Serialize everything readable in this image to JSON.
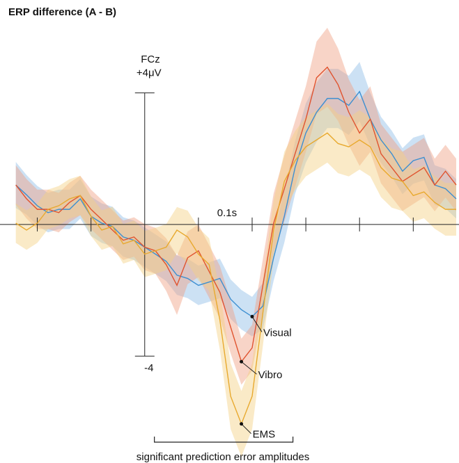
{
  "chart_data": {
    "type": "line",
    "title": "ERP difference (A - B)",
    "y_label": "FCz",
    "x": [
      -0.12,
      -0.11,
      -0.1,
      -0.09,
      -0.08,
      -0.07,
      -0.06,
      -0.05,
      -0.04,
      -0.03,
      -0.02,
      -0.01,
      0,
      0.01,
      0.02,
      0.03,
      0.04,
      0.05,
      0.06,
      0.07,
      0.08,
      0.09,
      0.1,
      0.11,
      0.12,
      0.13,
      0.14,
      0.15,
      0.16,
      0.17,
      0.18,
      0.19,
      0.2,
      0.21,
      0.22,
      0.23,
      0.24,
      0.25,
      0.26,
      0.27,
      0.28,
      0.29
    ],
    "xlim": [
      -0.125,
      0.29
    ],
    "ylim": [
      -6.7,
      6.4
    ],
    "xticks": [
      {
        "value": -0.1,
        "label": null
      },
      {
        "value": -0.05,
        "label": null
      },
      {
        "value": 0.05,
        "label": null
      },
      {
        "value": 0.1,
        "label": "0.1s"
      },
      {
        "value": 0.15,
        "label": null
      },
      {
        "value": 0.2,
        "label": null
      },
      {
        "value": 0.25,
        "label": null
      }
    ],
    "yticks": [
      {
        "value": 4,
        "label": "+4μV"
      },
      -4
    ],
    "series": [
      {
        "name": "Visual",
        "color": "#3d8fd1",
        "band_color": "#8dbde6",
        "values": [
          1.2,
          0.9,
          0.57,
          0.36,
          0.46,
          0.46,
          0.78,
          0.25,
          0.04,
          -0.06,
          -0.38,
          -0.48,
          -0.69,
          -0.9,
          -1.12,
          -1.54,
          -1.64,
          -1.85,
          -1.75,
          -1.64,
          -2.27,
          -2.59,
          -2.8,
          -2.48,
          -1.01,
          0.25,
          1.73,
          2.78,
          3.41,
          3.83,
          3.83,
          3.62,
          4.04,
          3.2,
          2.57,
          2.15,
          1.62,
          1.94,
          2.04,
          1.2,
          1.09,
          0.78
        ],
        "error": [
          0.7,
          0.6,
          0.6,
          0.6,
          0.6,
          0.6,
          0.6,
          0.6,
          0.6,
          0.6,
          0.6,
          0.6,
          0.6,
          0.6,
          0.6,
          0.6,
          0.6,
          0.6,
          0.6,
          0.6,
          0.6,
          0.6,
          0.6,
          0.7,
          0.7,
          0.8,
          0.8,
          0.9,
          0.9,
          0.9,
          0.9,
          0.9,
          0.9,
          0.8,
          0.7,
          0.7,
          0.7,
          0.7,
          0.7,
          0.6,
          0.6,
          0.6
        ]
      },
      {
        "name": "Vibro",
        "color": "#e0532f",
        "band_color": "#f0a083",
        "values": [
          1.2,
          0.78,
          0.46,
          0.46,
          0.36,
          0.67,
          0.88,
          0.46,
          0.15,
          -0.17,
          -0.48,
          -0.38,
          -0.69,
          -0.8,
          -1.22,
          -1.85,
          -1.01,
          -0.8,
          -1.43,
          -2.06,
          -3.12,
          -4.17,
          -3.75,
          -1.85,
          0.04,
          1.09,
          2.15,
          3.2,
          4.46,
          4.78,
          4.25,
          3.41,
          2.78,
          3.2,
          2.15,
          1.73,
          1.31,
          1.52,
          1.73,
          1.2,
          1.62,
          1.2
        ],
        "error": [
          0.6,
          0.6,
          0.6,
          0.6,
          0.6,
          0.6,
          0.6,
          0.6,
          0.6,
          0.6,
          0.6,
          0.6,
          0.7,
          0.7,
          0.8,
          0.9,
          0.8,
          0.8,
          0.8,
          0.8,
          0.8,
          0.7,
          0.7,
          0.8,
          0.9,
          1.0,
          1.0,
          1.0,
          1.1,
          1.2,
          1.1,
          1.0,
          1.0,
          1.0,
          0.9,
          0.9,
          0.9,
          0.9,
          0.9,
          0.8,
          0.8,
          0.8
        ]
      },
      {
        "name": "EMS",
        "color": "#e8a92e",
        "band_color": "#f5d183",
        "values": [
          0.04,
          -0.17,
          0.04,
          0.46,
          0.57,
          0.78,
          0.88,
          0.25,
          -0.17,
          -0.06,
          -0.59,
          -0.48,
          -0.9,
          -0.8,
          -0.69,
          -0.17,
          -0.38,
          -0.9,
          -1.22,
          -2.91,
          -5.22,
          -6.06,
          -5.22,
          -2.69,
          -0.17,
          1.31,
          1.94,
          2.36,
          2.57,
          2.78,
          2.46,
          2.36,
          2.57,
          2.36,
          1.73,
          1.41,
          1.31,
          0.88,
          0.99,
          0.67,
          0.46,
          0.46
        ],
        "error": [
          0.6,
          0.6,
          0.6,
          0.6,
          0.6,
          0.6,
          0.6,
          0.6,
          0.6,
          0.6,
          0.6,
          0.6,
          0.7,
          0.7,
          0.7,
          0.7,
          0.8,
          0.8,
          0.8,
          0.9,
          1.0,
          1.0,
          1.0,
          1.0,
          0.9,
          0.9,
          0.9,
          0.9,
          0.9,
          0.9,
          0.9,
          0.9,
          0.9,
          0.9,
          0.9,
          0.9,
          0.9,
          0.8,
          0.8,
          0.8,
          0.8,
          0.8
        ]
      }
    ],
    "annotation": "significant prediction error amplitudes",
    "significance_range": [
      0.009,
      0.138
    ]
  }
}
